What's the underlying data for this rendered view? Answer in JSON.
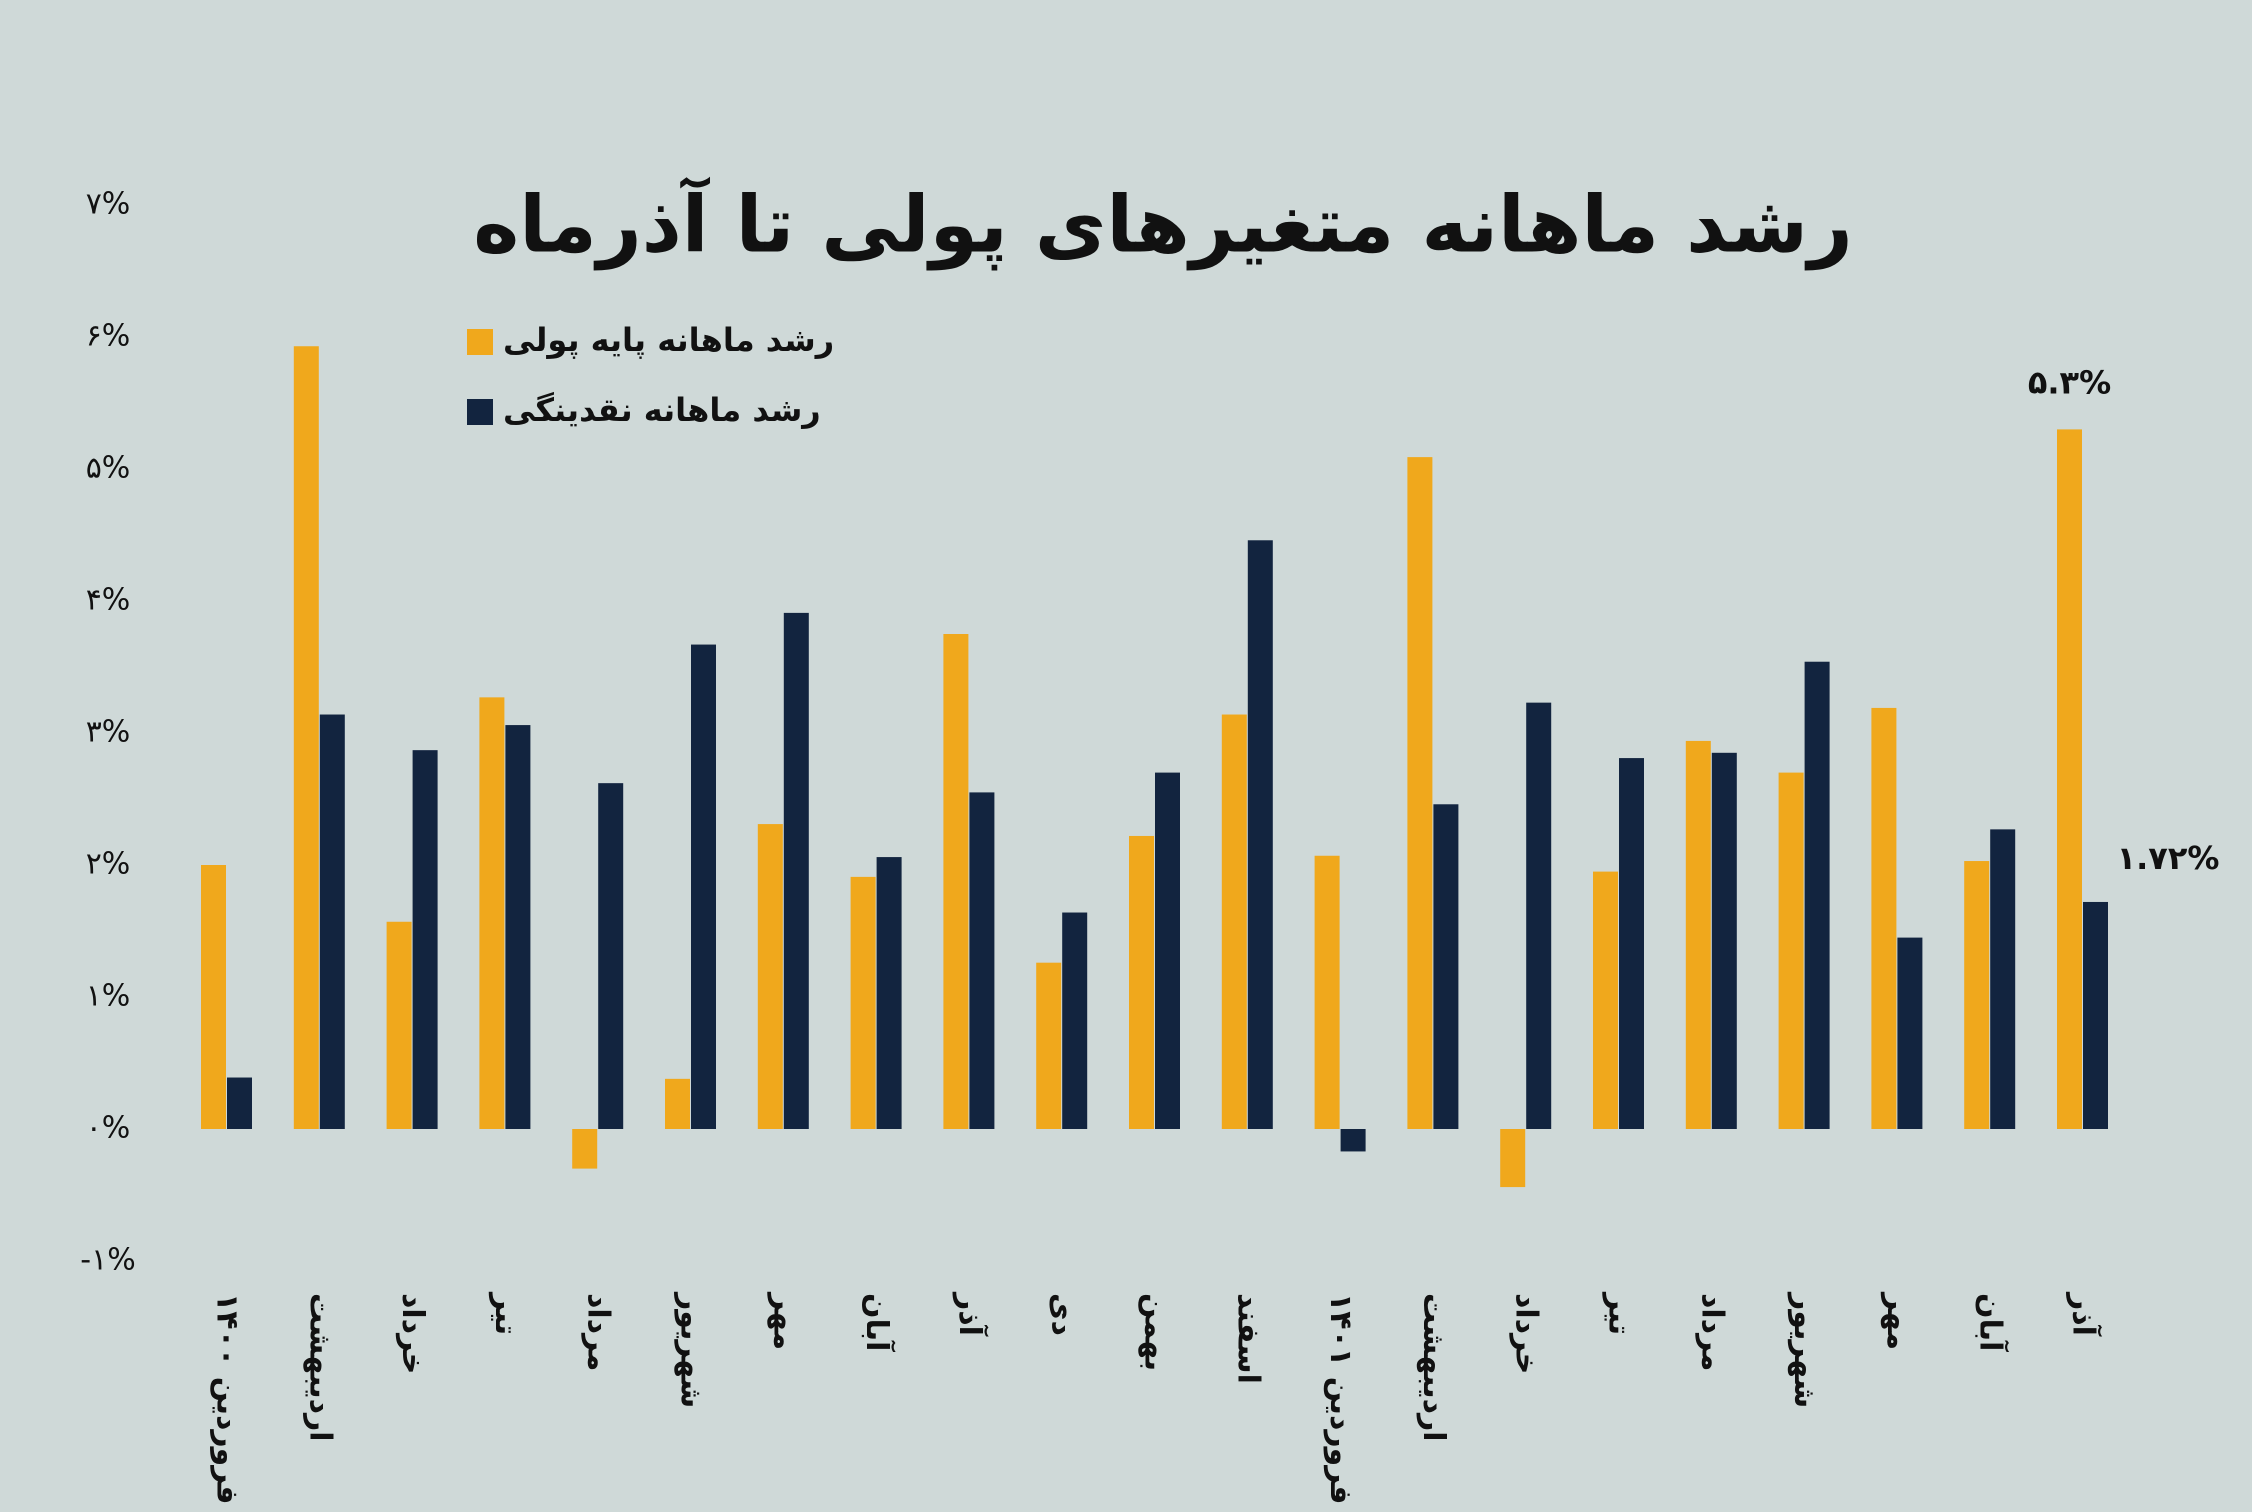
{
  "chart_data": {
    "type": "bar",
    "title": "رشد ماهانه متغیرهای پولی تا آذرماه",
    "categories": [
      "فروردین ۱۴۰۰",
      "اردیبهشت",
      "خرداد",
      "تیر",
      "مرداد",
      "شهریور",
      "مهر",
      "آبان",
      "آذر",
      "دی",
      "بهمن",
      "اسفند",
      "فروردین ۱۴۰۱",
      "اردیبهشت",
      "خرداد",
      "تیر",
      "مرداد",
      "شهریور",
      "مهر",
      "آبان",
      "آذر"
    ],
    "series": [
      {
        "name": "رشد ماهانه پایه پولی",
        "color": "#f0a81c",
        "values": [
          2.0,
          5.93,
          1.57,
          3.27,
          -0.3,
          0.38,
          2.31,
          1.91,
          3.75,
          1.26,
          2.22,
          3.14,
          2.07,
          5.09,
          -0.44,
          1.95,
          2.94,
          2.7,
          3.19,
          2.03,
          5.3
        ],
        "value_labels": [
          null,
          null,
          null,
          null,
          null,
          null,
          null,
          null,
          null,
          null,
          null,
          null,
          null,
          null,
          null,
          null,
          null,
          null,
          null,
          null,
          "۵.۳%"
        ]
      },
      {
        "name": "رشد ماهانه نقدینگی",
        "color": "#12243f",
        "values": [
          0.39,
          3.14,
          2.87,
          3.06,
          2.62,
          3.67,
          3.91,
          2.06,
          2.55,
          1.64,
          2.7,
          4.46,
          -0.17,
          2.46,
          3.23,
          2.81,
          2.85,
          3.54,
          1.45,
          2.27,
          1.72
        ],
        "value_labels": [
          null,
          null,
          null,
          null,
          null,
          null,
          null,
          null,
          null,
          null,
          null,
          null,
          null,
          null,
          null,
          null,
          null,
          null,
          null,
          null,
          "۱.۷۲%"
        ]
      }
    ],
    "ylim": [
      -1,
      7
    ],
    "yticks": [
      {
        "value": 7,
        "label": "۷%"
      },
      {
        "value": 6,
        "label": "۶%"
      },
      {
        "value": 5,
        "label": "۵%"
      },
      {
        "value": 4,
        "label": "۴%"
      },
      {
        "value": 3,
        "label": "۳%"
      },
      {
        "value": 2,
        "label": "۲%"
      },
      {
        "value": 1,
        "label": "۱%"
      },
      {
        "value": 0,
        "label": "۰%"
      },
      {
        "value": -1,
        "label": "-۱%"
      }
    ],
    "grid": false,
    "legend": "top-left"
  }
}
